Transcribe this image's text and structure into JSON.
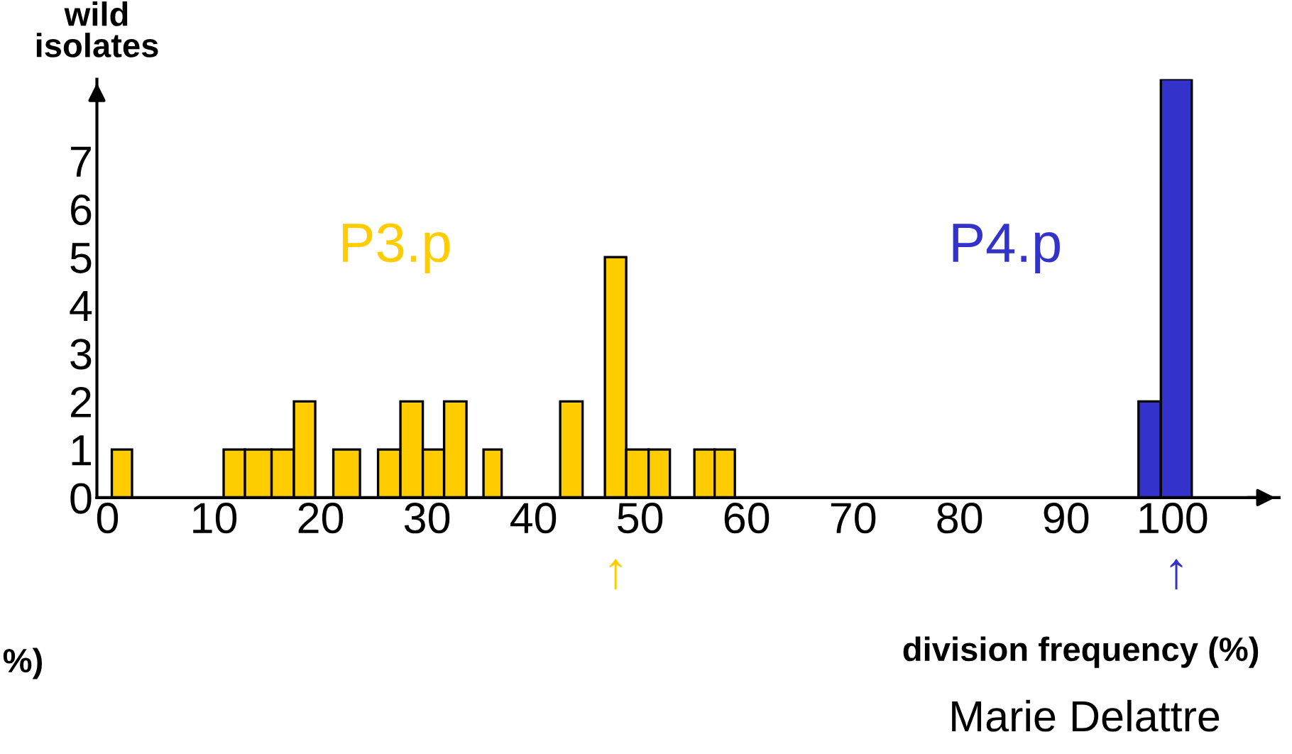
{
  "chart_data": {
    "type": "histogram",
    "ylabel": "wild\nisolates",
    "xlabel": "division frequency (%)",
    "bins": [
      0.4,
      2.3,
      10.9,
      12.9,
      15.4,
      17.5,
      19.5,
      21.2,
      23.7,
      25.4,
      27.5,
      29.6,
      31.6,
      33.7,
      35.3,
      37,
      42.5,
      44.6,
      46.7,
      48.7,
      50.8,
      52.8,
      55.1,
      57,
      58.9,
      96.8,
      98.9,
      101.8
    ],
    "series": [
      {
        "name": "P3.p",
        "color": "#ffcc00",
        "values": [
          1,
          0,
          1,
          1,
          1,
          2,
          0,
          1,
          0,
          1,
          2,
          1,
          2,
          0,
          1,
          0,
          2,
          0,
          5,
          1,
          1,
          0,
          1,
          1,
          0,
          0,
          0
        ]
      },
      {
        "name": "P4.p",
        "color": "#3333cc",
        "values": [
          0,
          0,
          0,
          0,
          0,
          0,
          0,
          0,
          0,
          0,
          0,
          0,
          0,
          0,
          0,
          0,
          0,
          0,
          0,
          0,
          0,
          0,
          0,
          0,
          0,
          2,
          8.7
        ]
      }
    ],
    "xlim": [
      -1,
      110
    ],
    "xticks": [
      0,
      10,
      20,
      30,
      40,
      50,
      60,
      70,
      80,
      90,
      100
    ],
    "ylim": [
      0,
      8.7
    ],
    "yticks": [
      0,
      1,
      2,
      3,
      4,
      5,
      6,
      7
    ],
    "grid": false,
    "annotations": [
      "↑",
      "↑",
      "%)",
      "Marie Delattre"
    ]
  }
}
